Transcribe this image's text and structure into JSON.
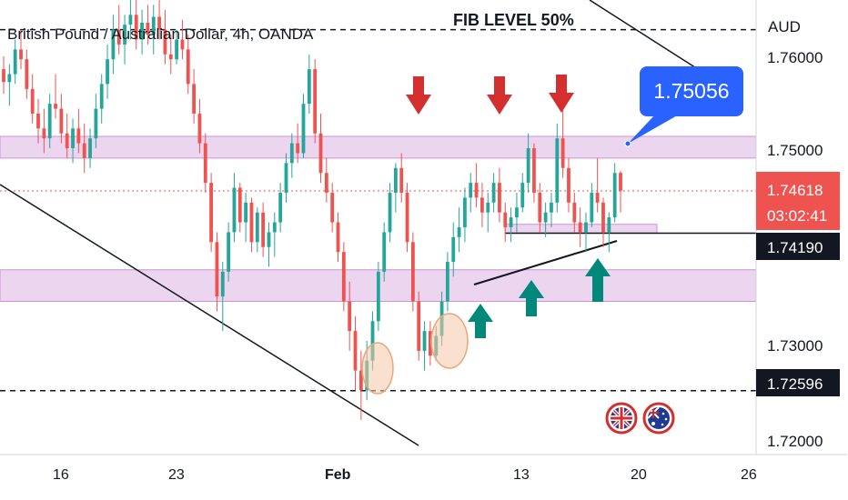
{
  "chart_data": {
    "type": "candlestick",
    "title": "British Pound / Australian Dollar, 4h, OANDA",
    "annotation_title": "FIB LEVEL 50%",
    "currency_label": "AUD",
    "y_ticks": [
      "1.76000",
      "1.75000",
      "1.73000",
      "1.72000"
    ],
    "x_ticks": [
      "16",
      "23",
      "Feb",
      "13",
      "20",
      "26"
    ],
    "price_labels": {
      "last_price": "1.74618",
      "countdown": "03:02:41",
      "support_level": "1.74190",
      "dashed_low": "1.72596",
      "callout": "1.75056"
    },
    "ylim": [
      1.7195,
      1.7655
    ],
    "levels": {
      "fib_dashed": 1.7625,
      "resistance_zone": [
        1.7495,
        1.7517
      ],
      "support_zone": [
        1.735,
        1.7382
      ],
      "small_zone": [
        1.7419,
        1.7428
      ],
      "support_line": 1.7419,
      "dashed_low": 1.72596,
      "current": 1.74618
    },
    "colors": {
      "up": "#26a69a",
      "down": "#ef5350",
      "zone": "#e1bee7",
      "zone_border": "#ce93d8",
      "callout": "#2962ff",
      "arrow_down": "#d32f2f",
      "arrow_up": "#00897b",
      "circle": "#f5c7a8",
      "line": "#131722"
    },
    "candles": [
      [
        1.7585,
        1.7598,
        1.756,
        1.7572
      ],
      [
        1.7572,
        1.759,
        1.7548,
        1.758
      ],
      [
        1.758,
        1.7615,
        1.757,
        1.7605
      ],
      [
        1.7605,
        1.7625,
        1.7585,
        1.7595
      ],
      [
        1.7595,
        1.7605,
        1.7555,
        1.7565
      ],
      [
        1.7565,
        1.758,
        1.753,
        1.754
      ],
      [
        1.754,
        1.7555,
        1.751,
        1.7525
      ],
      [
        1.7525,
        1.7545,
        1.75,
        1.7515
      ],
      [
        1.7515,
        1.756,
        1.7505,
        1.755
      ],
      [
        1.755,
        1.758,
        1.7535,
        1.7545
      ],
      [
        1.7545,
        1.756,
        1.751,
        1.752
      ],
      [
        1.752,
        1.754,
        1.7495,
        1.7505
      ],
      [
        1.7505,
        1.7535,
        1.749,
        1.7525
      ],
      [
        1.7525,
        1.7545,
        1.75,
        1.751
      ],
      [
        1.751,
        1.753,
        1.748,
        1.7495
      ],
      [
        1.7495,
        1.7525,
        1.7485,
        1.7515
      ],
      [
        1.7515,
        1.756,
        1.7505,
        1.7545
      ],
      [
        1.7545,
        1.758,
        1.753,
        1.757
      ],
      [
        1.757,
        1.761,
        1.7555,
        1.7595
      ],
      [
        1.7595,
        1.764,
        1.758,
        1.7625
      ],
      [
        1.7625,
        1.765,
        1.76,
        1.761
      ],
      [
        1.761,
        1.764,
        1.759,
        1.763
      ],
      [
        1.763,
        1.766,
        1.7615,
        1.764
      ],
      [
        1.764,
        1.7655,
        1.7605,
        1.7615
      ],
      [
        1.7615,
        1.7645,
        1.76,
        1.7632
      ],
      [
        1.7632,
        1.765,
        1.761,
        1.762
      ],
      [
        1.762,
        1.765,
        1.76,
        1.7638
      ],
      [
        1.7638,
        1.7655,
        1.7615,
        1.7625
      ],
      [
        1.7625,
        1.7645,
        1.759,
        1.76
      ],
      [
        1.76,
        1.762,
        1.758,
        1.7595
      ],
      [
        1.7595,
        1.7625,
        1.759,
        1.7615
      ],
      [
        1.7615,
        1.7635,
        1.7595,
        1.7605
      ],
      [
        1.7605,
        1.762,
        1.756,
        1.757
      ],
      [
        1.757,
        1.7585,
        1.753,
        1.754
      ],
      [
        1.754,
        1.7555,
        1.75,
        1.751
      ],
      [
        1.751,
        1.752,
        1.746,
        1.747
      ],
      [
        1.747,
        1.748,
        1.74,
        1.741
      ],
      [
        1.741,
        1.742,
        1.734,
        1.7355
      ],
      [
        1.7355,
        1.739,
        1.732,
        1.738
      ],
      [
        1.738,
        1.743,
        1.737,
        1.742
      ],
      [
        1.742,
        1.748,
        1.741,
        1.7465
      ],
      [
        1.7465,
        1.747,
        1.742,
        1.743
      ],
      [
        1.743,
        1.746,
        1.741,
        1.745
      ],
      [
        1.745,
        1.7455,
        1.74,
        1.741
      ],
      [
        1.741,
        1.7445,
        1.74,
        1.744
      ],
      [
        1.744,
        1.745,
        1.7395,
        1.7405
      ],
      [
        1.7405,
        1.743,
        1.7385,
        1.742
      ],
      [
        1.742,
        1.744,
        1.7395,
        1.743
      ],
      [
        1.743,
        1.747,
        1.742,
        1.746
      ],
      [
        1.746,
        1.75,
        1.745,
        1.749
      ],
      [
        1.749,
        1.752,
        1.7475,
        1.751
      ],
      [
        1.751,
        1.753,
        1.749,
        1.75
      ],
      [
        1.75,
        1.756,
        1.7495,
        1.755
      ],
      [
        1.755,
        1.76,
        1.754,
        1.7585
      ],
      [
        1.7585,
        1.7595,
        1.751,
        1.752
      ],
      [
        1.752,
        1.754,
        1.747,
        1.748
      ],
      [
        1.748,
        1.7495,
        1.745,
        1.746
      ],
      [
        1.746,
        1.747,
        1.742,
        1.743
      ],
      [
        1.743,
        1.744,
        1.739,
        1.74
      ],
      [
        1.74,
        1.741,
        1.734,
        1.735
      ],
      [
        1.735,
        1.737,
        1.73,
        1.732
      ],
      [
        1.732,
        1.7335,
        1.726,
        1.728
      ],
      [
        1.728,
        1.73,
        1.723,
        1.726
      ],
      [
        1.726,
        1.731,
        1.725,
        1.729
      ],
      [
        1.729,
        1.734,
        1.728,
        1.733
      ],
      [
        1.733,
        1.739,
        1.732,
        1.738
      ],
      [
        1.738,
        1.743,
        1.737,
        1.742
      ],
      [
        1.742,
        1.747,
        1.741,
        1.746
      ],
      [
        1.746,
        1.749,
        1.744,
        1.7485
      ],
      [
        1.7485,
        1.75,
        1.745,
        1.746
      ],
      [
        1.746,
        1.747,
        1.74,
        1.741
      ],
      [
        1.741,
        1.742,
        1.734,
        1.735
      ],
      [
        1.735,
        1.736,
        1.729,
        1.73
      ],
      [
        1.73,
        1.733,
        1.728,
        1.732
      ],
      [
        1.732,
        1.733,
        1.7285,
        1.7295
      ],
      [
        1.7295,
        1.7325,
        1.729,
        1.7315
      ],
      [
        1.7315,
        1.736,
        1.7305,
        1.735
      ],
      [
        1.735,
        1.74,
        1.734,
        1.739
      ],
      [
        1.739,
        1.743,
        1.7375,
        1.7415
      ],
      [
        1.7415,
        1.7445,
        1.74,
        1.7425
      ],
      [
        1.7425,
        1.7465,
        1.741,
        1.7455
      ],
      [
        1.7455,
        1.748,
        1.744,
        1.747
      ],
      [
        1.747,
        1.749,
        1.7445,
        1.7455
      ],
      [
        1.7455,
        1.747,
        1.7425,
        1.744
      ],
      [
        1.744,
        1.746,
        1.742,
        1.745
      ],
      [
        1.745,
        1.748,
        1.744,
        1.747
      ],
      [
        1.747,
        1.7485,
        1.743,
        1.744
      ],
      [
        1.744,
        1.745,
        1.741,
        1.7425
      ],
      [
        1.7425,
        1.7445,
        1.741,
        1.7435
      ],
      [
        1.7435,
        1.746,
        1.742,
        1.7445
      ],
      [
        1.7445,
        1.748,
        1.744,
        1.747
      ],
      [
        1.747,
        1.752,
        1.746,
        1.7505
      ],
      [
        1.7505,
        1.751,
        1.745,
        1.746
      ],
      [
        1.746,
        1.747,
        1.742,
        1.743
      ],
      [
        1.743,
        1.745,
        1.7415,
        1.744
      ],
      [
        1.744,
        1.746,
        1.7425,
        1.745
      ],
      [
        1.745,
        1.753,
        1.744,
        1.7515
      ],
      [
        1.7515,
        1.7545,
        1.7475,
        1.7485
      ],
      [
        1.7485,
        1.7495,
        1.744,
        1.745
      ],
      [
        1.745,
        1.746,
        1.742,
        1.743
      ],
      [
        1.743,
        1.7445,
        1.7405,
        1.742
      ],
      [
        1.742,
        1.744,
        1.74,
        1.743
      ],
      [
        1.743,
        1.747,
        1.7425,
        1.746
      ],
      [
        1.746,
        1.7495,
        1.744,
        1.745
      ],
      [
        1.745,
        1.7455,
        1.7405,
        1.742
      ],
      [
        1.742,
        1.744,
        1.74,
        1.7435
      ],
      [
        1.7435,
        1.749,
        1.743,
        1.748
      ],
      [
        1.748,
        1.7482,
        1.744,
        1.7462
      ]
    ]
  }
}
